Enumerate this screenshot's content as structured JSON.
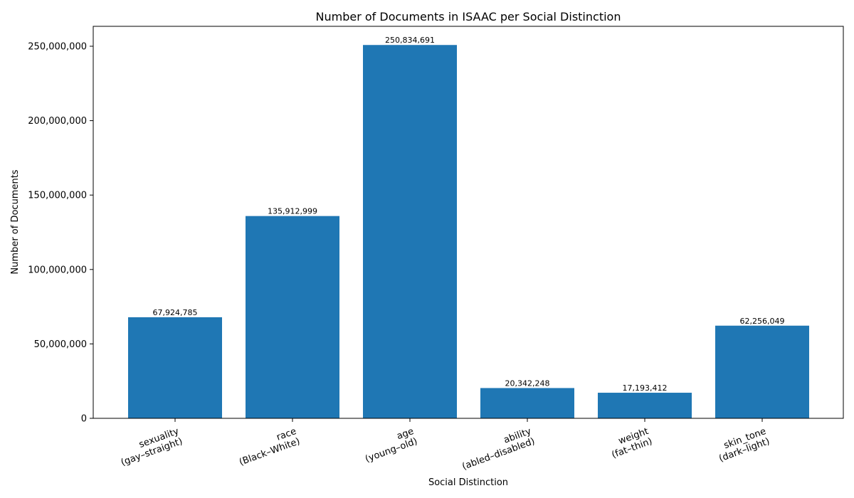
{
  "chart_data": {
    "type": "bar",
    "title": "Number of Documents in ISAAC per Social Distinction",
    "xlabel": "Social Distinction",
    "ylabel": "Number of Documents",
    "categories": [
      [
        "sexuality",
        "(gay–straight)"
      ],
      [
        "race",
        "(Black–White)"
      ],
      [
        "age",
        "(young–old)"
      ],
      [
        "ability",
        "(abled–disabled)"
      ],
      [
        "weight",
        "(fat–thin)"
      ],
      [
        "skin_tone",
        "(dark–light)"
      ]
    ],
    "values": [
      67924785,
      135912999,
      250834691,
      20342248,
      17193412,
      62256049
    ],
    "value_labels": [
      "67,924,785",
      "135,912,999",
      "250,834,691",
      "20,342,248",
      "17,193,412",
      "62,256,049"
    ],
    "yticks": [
      0,
      50000000,
      100000000,
      150000000,
      200000000,
      250000000
    ],
    "ytick_labels": [
      "0",
      "50,000,000",
      "100,000,000",
      "150,000,000",
      "200,000,000",
      "250,000,000"
    ],
    "ylim": [
      0,
      263376426
    ],
    "bar_color": "#1f77b4",
    "grid": false,
    "legend": "none"
  }
}
